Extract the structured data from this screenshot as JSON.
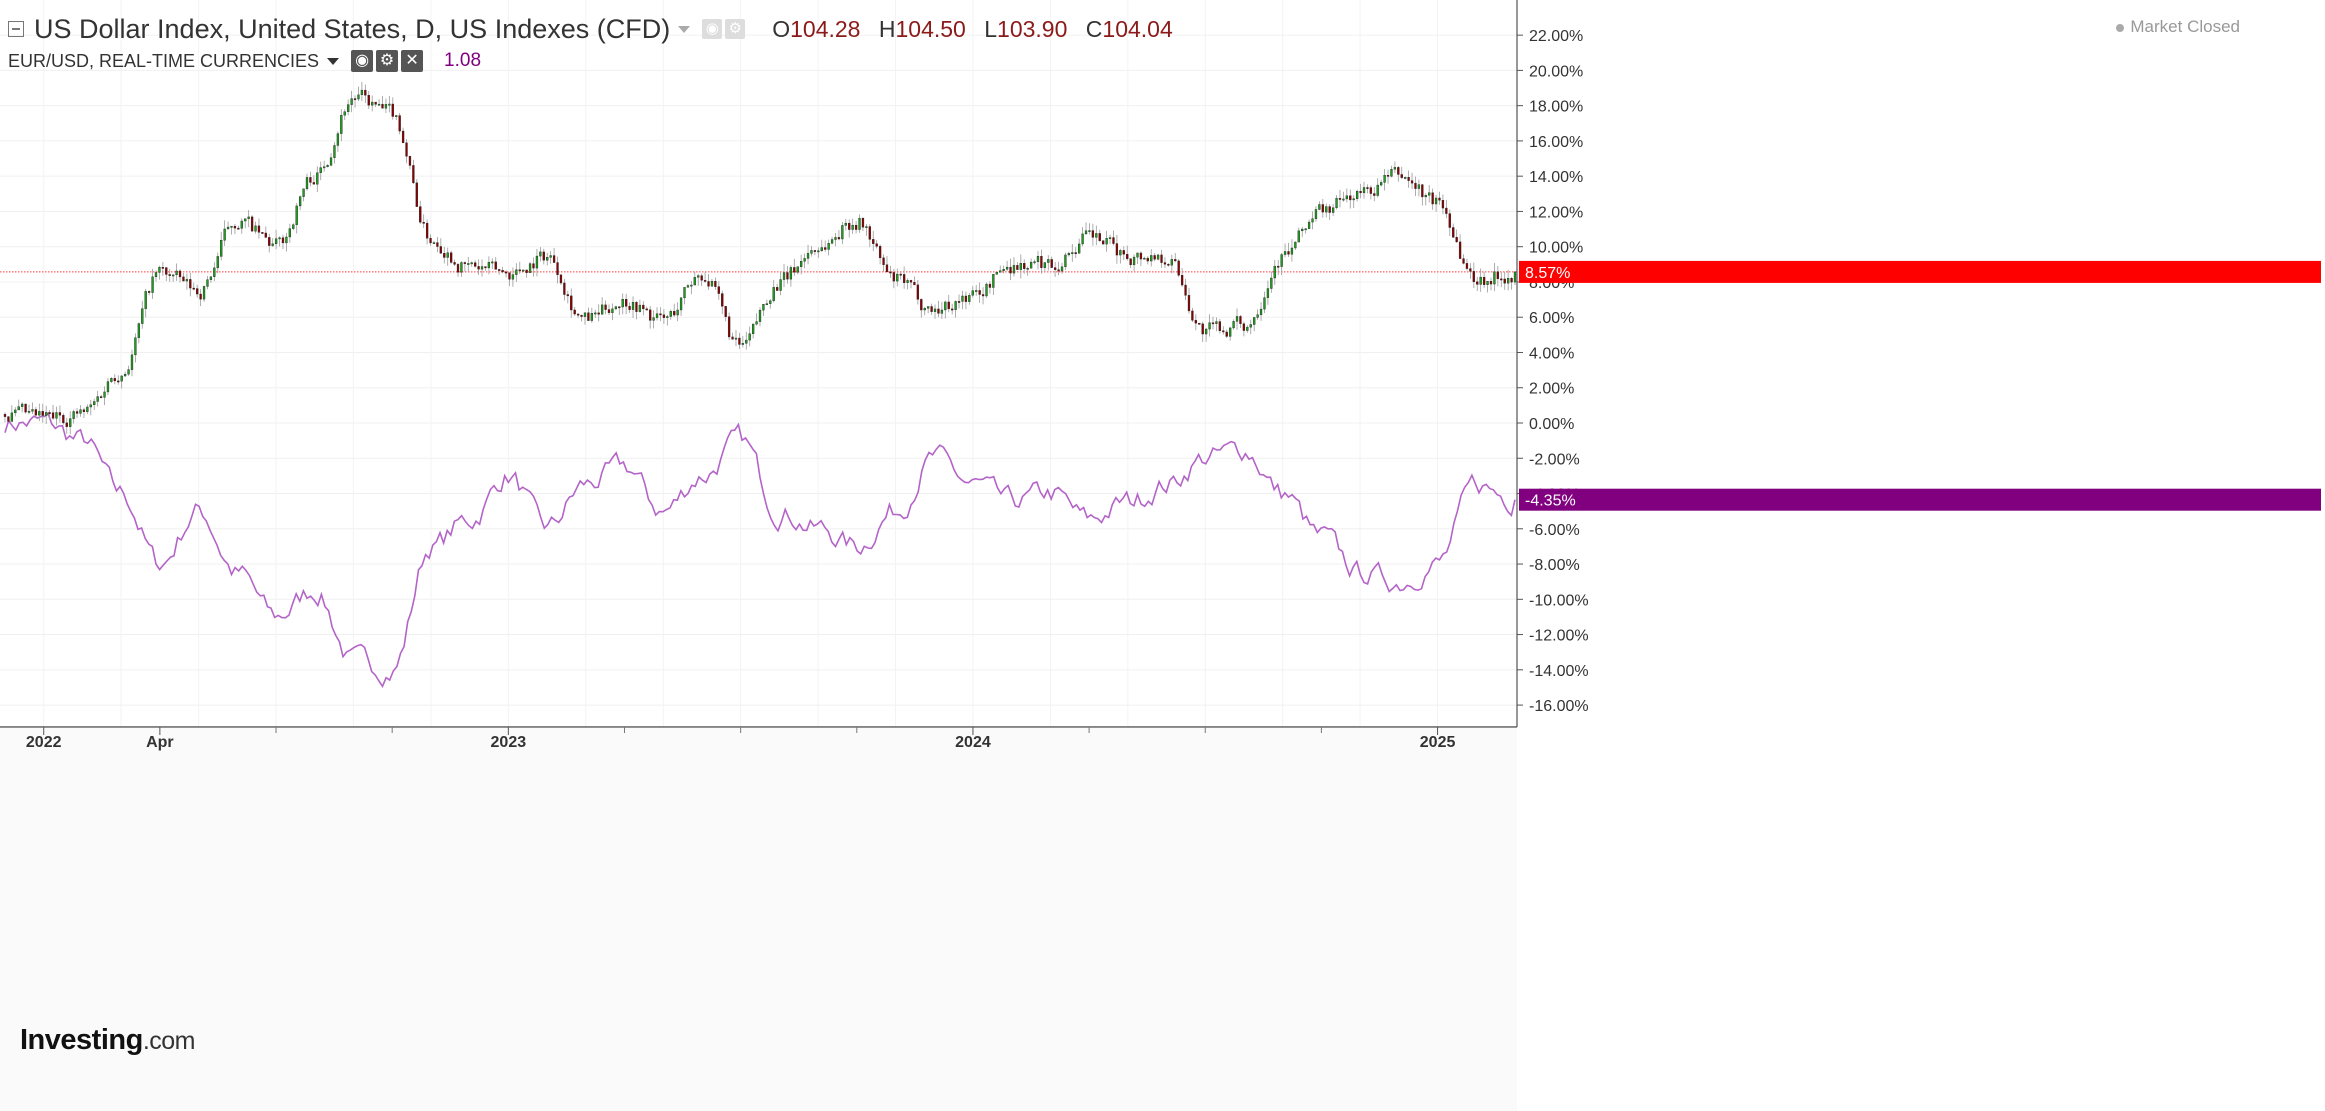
{
  "header": {
    "title": "US Dollar Index, United States, D, US Indexes (CFD)",
    "ohlc": [
      {
        "key": "O",
        "value": "104.28"
      },
      {
        "key": "H",
        "value": "104.50"
      },
      {
        "key": "L",
        "value": "103.90"
      },
      {
        "key": "C",
        "value": "104.04"
      }
    ],
    "compare_symbol": "EUR/USD, REAL-TIME CURRENCIES",
    "compare_value": "1.08",
    "market_status": "Market Closed",
    "brand": "Investing",
    "brand_suffix": ".com"
  },
  "colors": {
    "up": "#1b9e1b",
    "down": "#8b0000",
    "compare": "#b464c8",
    "last_price_tag": "#ff0000",
    "compare_tag": "#800080"
  },
  "icons": [
    "collapse-icon",
    "dropdown-caret-icon",
    "visibility-icon",
    "settings-icon",
    "close-icon",
    "status-dot-icon"
  ],
  "chart_data": {
    "type": "candlestick",
    "y_axis": {
      "unit": "%",
      "range": [
        -17,
        23
      ],
      "ticks": [
        "22.00%",
        "20.00%",
        "18.00%",
        "16.00%",
        "14.00%",
        "12.00%",
        "10.00%",
        "8.00%",
        "6.00%",
        "4.00%",
        "2.00%",
        "0.00%",
        "-2.00%",
        "-4.00%",
        "-6.00%",
        "-8.00%",
        "-10.00%",
        "-12.00%",
        "-14.00%",
        "-16.00%"
      ],
      "tick_values": [
        22,
        20,
        18,
        16,
        14,
        12,
        10,
        8,
        6,
        4,
        2,
        0,
        -2,
        -4,
        -6,
        -8,
        -10,
        -12,
        -14,
        -16
      ]
    },
    "x_axis": {
      "labels": [
        "2022",
        "Apr",
        "2023",
        "2024",
        "2025"
      ],
      "label_dates": [
        "2022-01",
        "2022-04",
        "2023-01",
        "2024-01",
        "2025-01"
      ],
      "range": [
        "2021-12",
        "2025-03"
      ]
    },
    "grid": true,
    "series": [
      {
        "name": "US Dollar Index",
        "style": "candles",
        "last_label": "8.57%",
        "last_value": 8.57,
        "dates": [
          "2021-12",
          "2022-01",
          "2022-02",
          "2022-03",
          "2022-04",
          "2022-05",
          "2022-06",
          "2022-07",
          "2022-08",
          "2022-09",
          "2022-10",
          "2022-11",
          "2022-12",
          "2023-01",
          "2023-02",
          "2023-03",
          "2023-04",
          "2023-05",
          "2023-06",
          "2023-07",
          "2023-08",
          "2023-09",
          "2023-10",
          "2023-11",
          "2023-12",
          "2024-01",
          "2024-02",
          "2024-03",
          "2024-04",
          "2024-05",
          "2024-06",
          "2024-07",
          "2024-08",
          "2024-09",
          "2024-10",
          "2024-11",
          "2024-12",
          "2025-01",
          "2025-02",
          "2025-03"
        ],
        "values": [
          0.5,
          0.2,
          0.5,
          3.0,
          8.5,
          7.5,
          11.5,
          10.0,
          14.0,
          18.5,
          17.5,
          10.5,
          8.8,
          8.5,
          9.5,
          5.8,
          7.0,
          5.8,
          8.5,
          4.2,
          8.0,
          10.0,
          11.5,
          8.0,
          6.5,
          7.2,
          9.0,
          9.0,
          10.5,
          9.5,
          9.5,
          5.2,
          5.5,
          9.5,
          12.0,
          13.0,
          14.0,
          12.5,
          8.2,
          8.57
        ]
      },
      {
        "name": "EUR/USD",
        "style": "line",
        "last_label": "-4.35%",
        "last_value": -4.35,
        "dates": [
          "2021-12",
          "2022-01",
          "2022-02",
          "2022-03",
          "2022-04",
          "2022-05",
          "2022-06",
          "2022-07",
          "2022-08",
          "2022-09",
          "2022-10",
          "2022-11",
          "2022-12",
          "2023-01",
          "2023-02",
          "2023-03",
          "2023-04",
          "2023-05",
          "2023-06",
          "2023-07",
          "2023-08",
          "2023-09",
          "2023-10",
          "2023-11",
          "2023-12",
          "2024-01",
          "2024-02",
          "2024-03",
          "2024-04",
          "2024-05",
          "2024-06",
          "2024-07",
          "2024-08",
          "2024-09",
          "2024-10",
          "2024-11",
          "2024-12",
          "2025-01",
          "2025-02",
          "2025-03"
        ],
        "values": [
          0.0,
          0.0,
          -1.0,
          -4.0,
          -8.0,
          -5.0,
          -8.5,
          -11.0,
          -9.5,
          -13.5,
          -14.0,
          -7.0,
          -5.5,
          -3.0,
          -6.0,
          -3.5,
          -2.5,
          -5.0,
          -3.0,
          -1.0,
          -5.0,
          -6.0,
          -7.0,
          -5.0,
          -2.0,
          -3.5,
          -4.5,
          -4.0,
          -5.5,
          -4.5,
          -3.5,
          -2.0,
          -1.5,
          -4.0,
          -6.5,
          -8.5,
          -9.0,
          -8.0,
          -3.5,
          -4.35
        ]
      }
    ]
  }
}
